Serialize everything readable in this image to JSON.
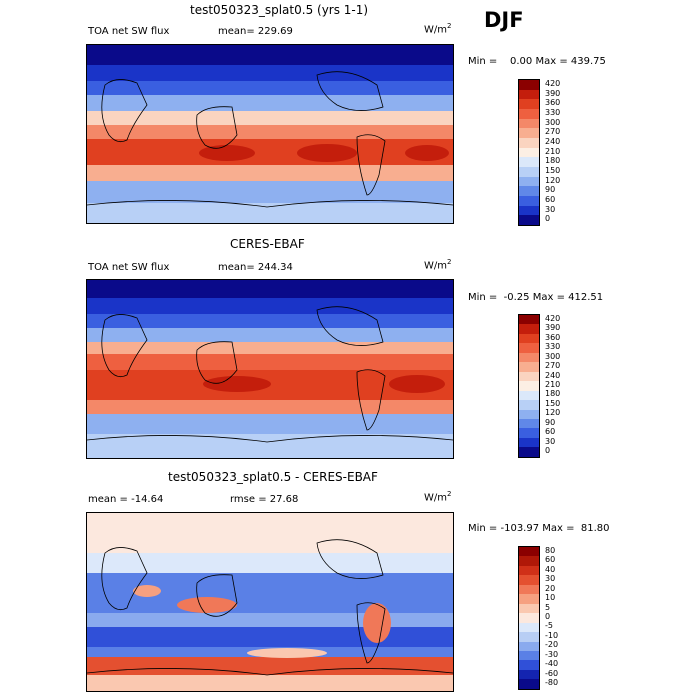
{
  "season": "DJF",
  "chart_data": [
    {
      "type": "heatmap",
      "title": "test050323_splat0.5 (yrs 1-1)",
      "field": "TOA net SW flux",
      "stat_text": "mean= 229.69",
      "units": "W/m",
      "units_exp": "2",
      "minmax": "Min =    0.00 Max = 439.75",
      "levels": [
        "420",
        "390",
        "360",
        "330",
        "300",
        "270",
        "240",
        "210",
        "180",
        "150",
        "120",
        "90",
        "60",
        "30",
        "0"
      ],
      "colors": [
        "#8b0000",
        "#c41e0c",
        "#e04020",
        "#ee6040",
        "#f48868",
        "#f8ae90",
        "#fad4c0",
        "#fcefe4",
        "#dbe8fa",
        "#b8d0f6",
        "#8eb0f0",
        "#6088e8",
        "#3a5fe0",
        "#1a34c8",
        "#0a0a8a"
      ]
    },
    {
      "type": "heatmap",
      "title": "CERES-EBAF",
      "field": "TOA net SW flux",
      "stat_text": "mean= 244.34",
      "units": "W/m",
      "units_exp": "2",
      "minmax": "Min =  -0.25 Max = 412.51",
      "levels": [
        "420",
        "390",
        "360",
        "330",
        "300",
        "270",
        "240",
        "210",
        "180",
        "150",
        "120",
        "90",
        "60",
        "30",
        "0"
      ],
      "colors": [
        "#8b0000",
        "#c41e0c",
        "#e04020",
        "#ee6040",
        "#f48868",
        "#f8ae90",
        "#fad4c0",
        "#fcefe4",
        "#dbe8fa",
        "#b8d0f6",
        "#8eb0f0",
        "#6088e8",
        "#3a5fe0",
        "#1a34c8",
        "#0a0a8a"
      ]
    },
    {
      "type": "heatmap",
      "title": "test050323_splat0.5 - CERES-EBAF",
      "field": "mean = -14.64",
      "stat_text": "rmse =  27.68",
      "units": "W/m",
      "units_exp": "2",
      "minmax": "Min = -103.97 Max =  81.80",
      "levels": [
        "80",
        "60",
        "40",
        "30",
        "20",
        "10",
        "5",
        "0",
        "-5",
        "-10",
        "-20",
        "-30",
        "-40",
        "-60",
        "-80"
      ],
      "colors": [
        "#8b0000",
        "#b01808",
        "#d03018",
        "#e45030",
        "#f07858",
        "#f6a080",
        "#fac8b0",
        "#fce8de",
        "#dce8fa",
        "#b8cef4",
        "#8aaaee",
        "#5a80e6",
        "#3050d8",
        "#1424b0",
        "#0a0a8a"
      ]
    }
  ]
}
